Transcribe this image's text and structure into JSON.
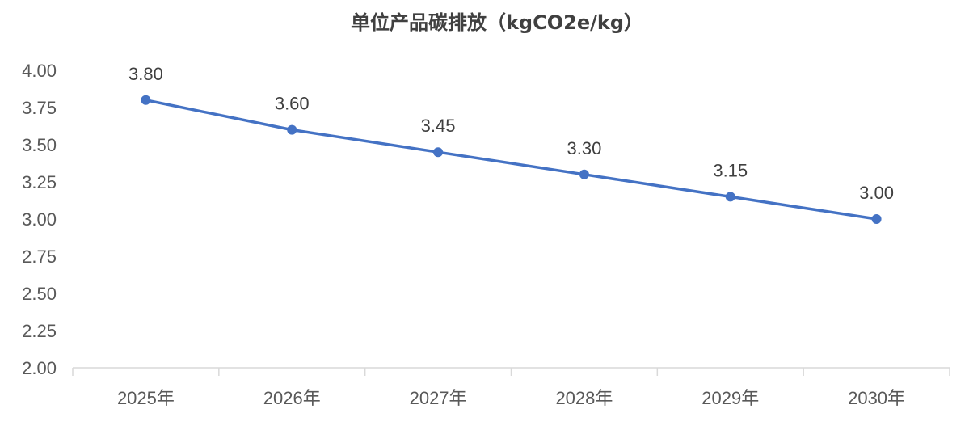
{
  "chart_data": {
    "type": "line",
    "title": "单位产品碳排放（kgCO2e/kg）",
    "categories": [
      "2025年",
      "2026年",
      "2027年",
      "2028年",
      "2029年",
      "2030年"
    ],
    "series": [
      {
        "values": [
          3.8,
          3.6,
          3.45,
          3.3,
          3.15,
          3.0
        ],
        "data_labels": [
          "3.80",
          "3.60",
          "3.45",
          "3.30",
          "3.15",
          "3.00"
        ]
      }
    ],
    "ylim": [
      2.0,
      4.0
    ],
    "yticks": [
      "2.00",
      "2.25",
      "2.50",
      "2.75",
      "3.00",
      "3.25",
      "3.50",
      "3.75",
      "4.00"
    ],
    "grid": false,
    "line_color": "#4472C4",
    "axis_color": "#D9D9D9"
  }
}
